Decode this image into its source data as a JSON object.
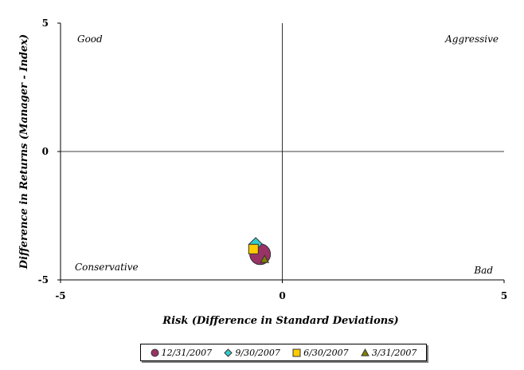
{
  "chart_data": {
    "type": "scatter",
    "title": "",
    "xlabel": "Risk (Difference in Standard Deviations)",
    "ylabel": "Difference in Returns (Manager - Index)",
    "xlim": [
      -5,
      5
    ],
    "ylim": [
      -5,
      5
    ],
    "x_ticks": [
      "-5",
      "0",
      "5"
    ],
    "y_ticks": [
      "5",
      "0",
      "-5"
    ],
    "grid": false,
    "legend_position": "bottom",
    "quadrant_labels": {
      "top_left": "Good",
      "top_right": "Aggressive",
      "bottom_left": "Conservative",
      "bottom_right": "Bad"
    },
    "series": [
      {
        "name": "12/31/2007",
        "marker": "circle",
        "color": "#993366",
        "points": [
          {
            "x": -0.5,
            "y": -4.0
          }
        ]
      },
      {
        "name": "9/30/2007",
        "marker": "diamond",
        "color": "#33CCCC",
        "points": [
          {
            "x": -0.6,
            "y": -3.6
          }
        ]
      },
      {
        "name": "6/30/2007",
        "marker": "square",
        "color": "#FFCC00",
        "points": [
          {
            "x": -0.65,
            "y": -3.8
          }
        ]
      },
      {
        "name": "3/31/2007",
        "marker": "triangle",
        "color": "#808000",
        "points": [
          {
            "x": -0.4,
            "y": -4.2
          }
        ]
      }
    ]
  }
}
